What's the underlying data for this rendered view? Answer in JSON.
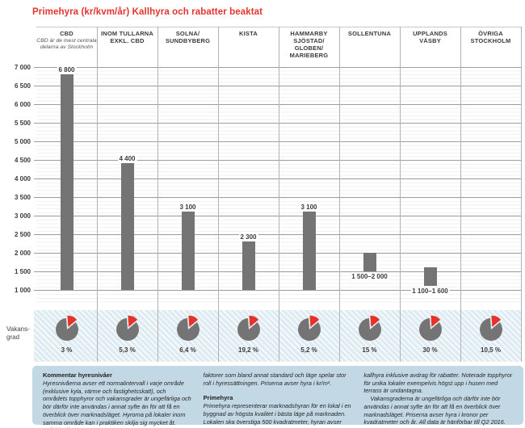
{
  "title": "Primehyra (kr/kvm/år) Kallhyra och rabatter beaktat",
  "chart_data": {
    "type": "bar",
    "title": "Primehyra (kr/kvm/år) Kallhyra och rabatter beaktat",
    "unit": "kr/kvm/år",
    "ylim": [
      1000,
      7000
    ],
    "ytick_values": [
      7000,
      6500,
      6000,
      5500,
      5000,
      4500,
      4000,
      3500,
      3000,
      2500,
      2000,
      1500,
      1000
    ],
    "ytick_labels": [
      "7 000",
      "6 500",
      "6 000",
      "5 500",
      "5 000",
      "4 500",
      "4 000",
      "3 500",
      "3 000",
      "2 500",
      "2 000",
      "1 500",
      "1 000"
    ],
    "grid": "horizontal major gridlines every 500, faint minor lines every 100",
    "legend_position": "none",
    "cbd_note": "CBD är de mest centrala\ndelarna av Stockholm",
    "vacancy_row_label": "Vakans-\ngrad",
    "columns": [
      {
        "name": "CBD",
        "bar_label": "6 800",
        "value": 6800,
        "vacancy_label": "3 %",
        "vacancy_pct": 3
      },
      {
        "name": "INOM TULLARNA\nEXKL. CBD",
        "bar_label": "4 400",
        "value": 4400,
        "vacancy_label": "5,3 %",
        "vacancy_pct": 5.3
      },
      {
        "name": "SOLNA/\nSUNDBYBERG",
        "bar_label": "3 100",
        "value": 3100,
        "vacancy_label": "6,4 %",
        "vacancy_pct": 6.4
      },
      {
        "name": "KISTA",
        "bar_label": "2 300",
        "value": 2300,
        "vacancy_label": "19,2 %",
        "vacancy_pct": 19.2
      },
      {
        "name": "HAMMARBY\nSJÖSTAD/\nGLOBEN/\nMARIEBERG",
        "bar_label": "3 100",
        "value": 3100,
        "vacancy_label": "5,2 %",
        "vacancy_pct": 5.2
      },
      {
        "name": "SOLLENTUNA",
        "bar_label": "1 500–2 000",
        "value_min": 1500,
        "value_max": 2000,
        "vacancy_label": "15 %",
        "vacancy_pct": 15
      },
      {
        "name": "UPPLANDS\nVÄSBY",
        "bar_label": "1 100–1 600",
        "value_min": 1100,
        "value_max": 1600,
        "vacancy_label": "30 %",
        "vacancy_pct": 30
      },
      {
        "name": "ÖVRIGA\nSTOCKHOLM",
        "bar_label": "",
        "value": null,
        "vacancy_label": "10,5 %",
        "vacancy_pct": 10.5
      }
    ],
    "colors": {
      "bar_gray": "#757474",
      "pie_gray": "#757474",
      "accent_red": "#e6332a",
      "band_bg": "#dfebf3",
      "footer_bg": "#c2d8e4"
    }
  },
  "footer": {
    "col1": {
      "heading": "Kommentar hyresnivåer",
      "text": "Hyresnivåerna avser ett normalintervall i varje område (exklusive kyla, värme och fastighetsskatt), och områdets topphyror och vakansgrader är ungefärliga och bör därför inte användas i annat syfte än för att få en överblick över marknadsläget. Hyrorna på lokaler inom samma område kan i praktiken skilja sig mycket åt. Individuella"
    },
    "col2": {
      "text1": "faktorer som bland annat standard och läge spelar stor roll i hyressättningen. Priserna avser hyra i kr/m².",
      "heading": "Primehyra",
      "text2": "Primehyra representerar marknadshyran för en lokal i en byggnad av högsta kvalitet i bästa läge på marknaden. Lokalen ska överstiga 500 kvadratmeter, hyran avser"
    },
    "col3": {
      "text1": "kallhyra inklusive avdrag för rabatter. Noterade topphyror för unika lokaler exempelvis högst upp i husen med terrass är undantagna.",
      "text2": "Vakansgraderna är ungefärliga och därför inte bör användas i annat syfte än för att få en överblick över marknadsläget. Priserna avser hyra i kronor per kvadratmeter och år. All data är hänförbar till Q2 2016."
    }
  }
}
